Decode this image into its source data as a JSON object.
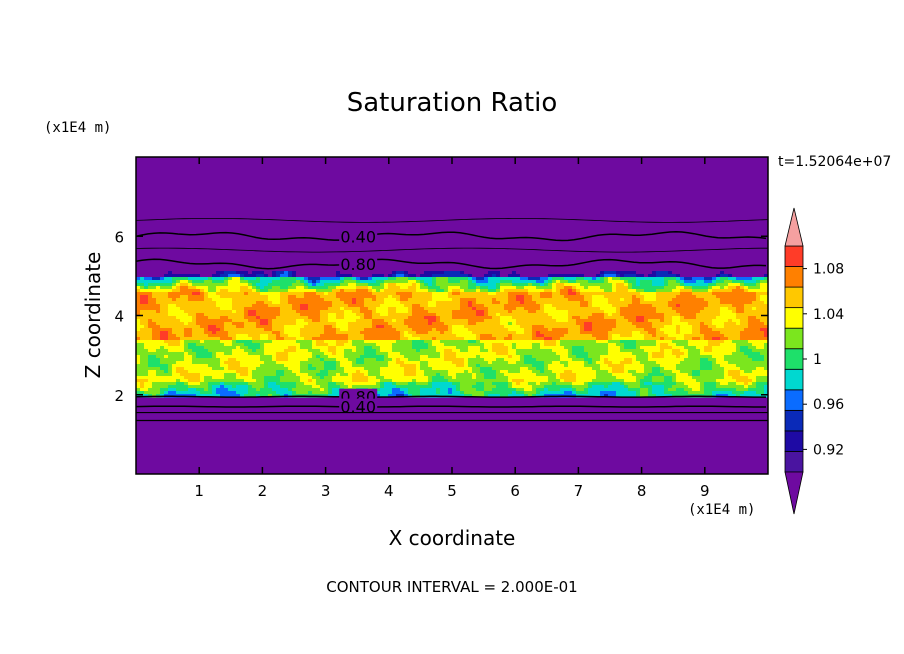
{
  "chart_data": {
    "type": "heatmap",
    "title": "Saturation Ratio",
    "xlabel": "X coordinate",
    "ylabel": "Z coordinate",
    "x_unit": "(x1E4 m)",
    "y_unit": "(x1E4 m)",
    "xlim": [
      0,
      10
    ],
    "ylim": [
      0,
      8
    ],
    "x_ticks": [
      1,
      2,
      3,
      4,
      5,
      6,
      7,
      8,
      9
    ],
    "y_ticks": [
      2,
      4,
      6
    ],
    "timestamp": "t=1.52064e+07",
    "footer": "CONTOUR INTERVAL = 2.000E-01",
    "colorbar": {
      "levels": [
        0.9,
        0.92,
        0.94,
        0.96,
        0.98,
        1.0,
        1.02,
        1.04,
        1.06,
        1.08,
        1.1
      ],
      "labels": [
        "0.92",
        "0.96",
        "1",
        "1.04",
        "1.08"
      ],
      "label_values": [
        0.92,
        0.96,
        1.0,
        1.04,
        1.08
      ],
      "colors": [
        "#4a14a0",
        "#1e0aa4",
        "#0a2ab8",
        "#0a6cff",
        "#00d8d0",
        "#1ee06a",
        "#7be61e",
        "#ffff00",
        "#ffc800",
        "#ff8000",
        "#ff3c28",
        "#f59a96"
      ],
      "under_color": "#6e0aa0",
      "over_color": "#f5a0a0"
    },
    "background_color": "#6e0aa0",
    "contour_lines": [
      {
        "label": "0.40",
        "z": 6.0
      },
      {
        "label": "0.80",
        "z": 5.3
      },
      {
        "label": "0.80",
        "z": 1.95
      },
      {
        "label": "0.40",
        "z": 1.7
      }
    ],
    "cloud_layer": {
      "z_bottom": 2.0,
      "z_top": 5.1
    }
  }
}
